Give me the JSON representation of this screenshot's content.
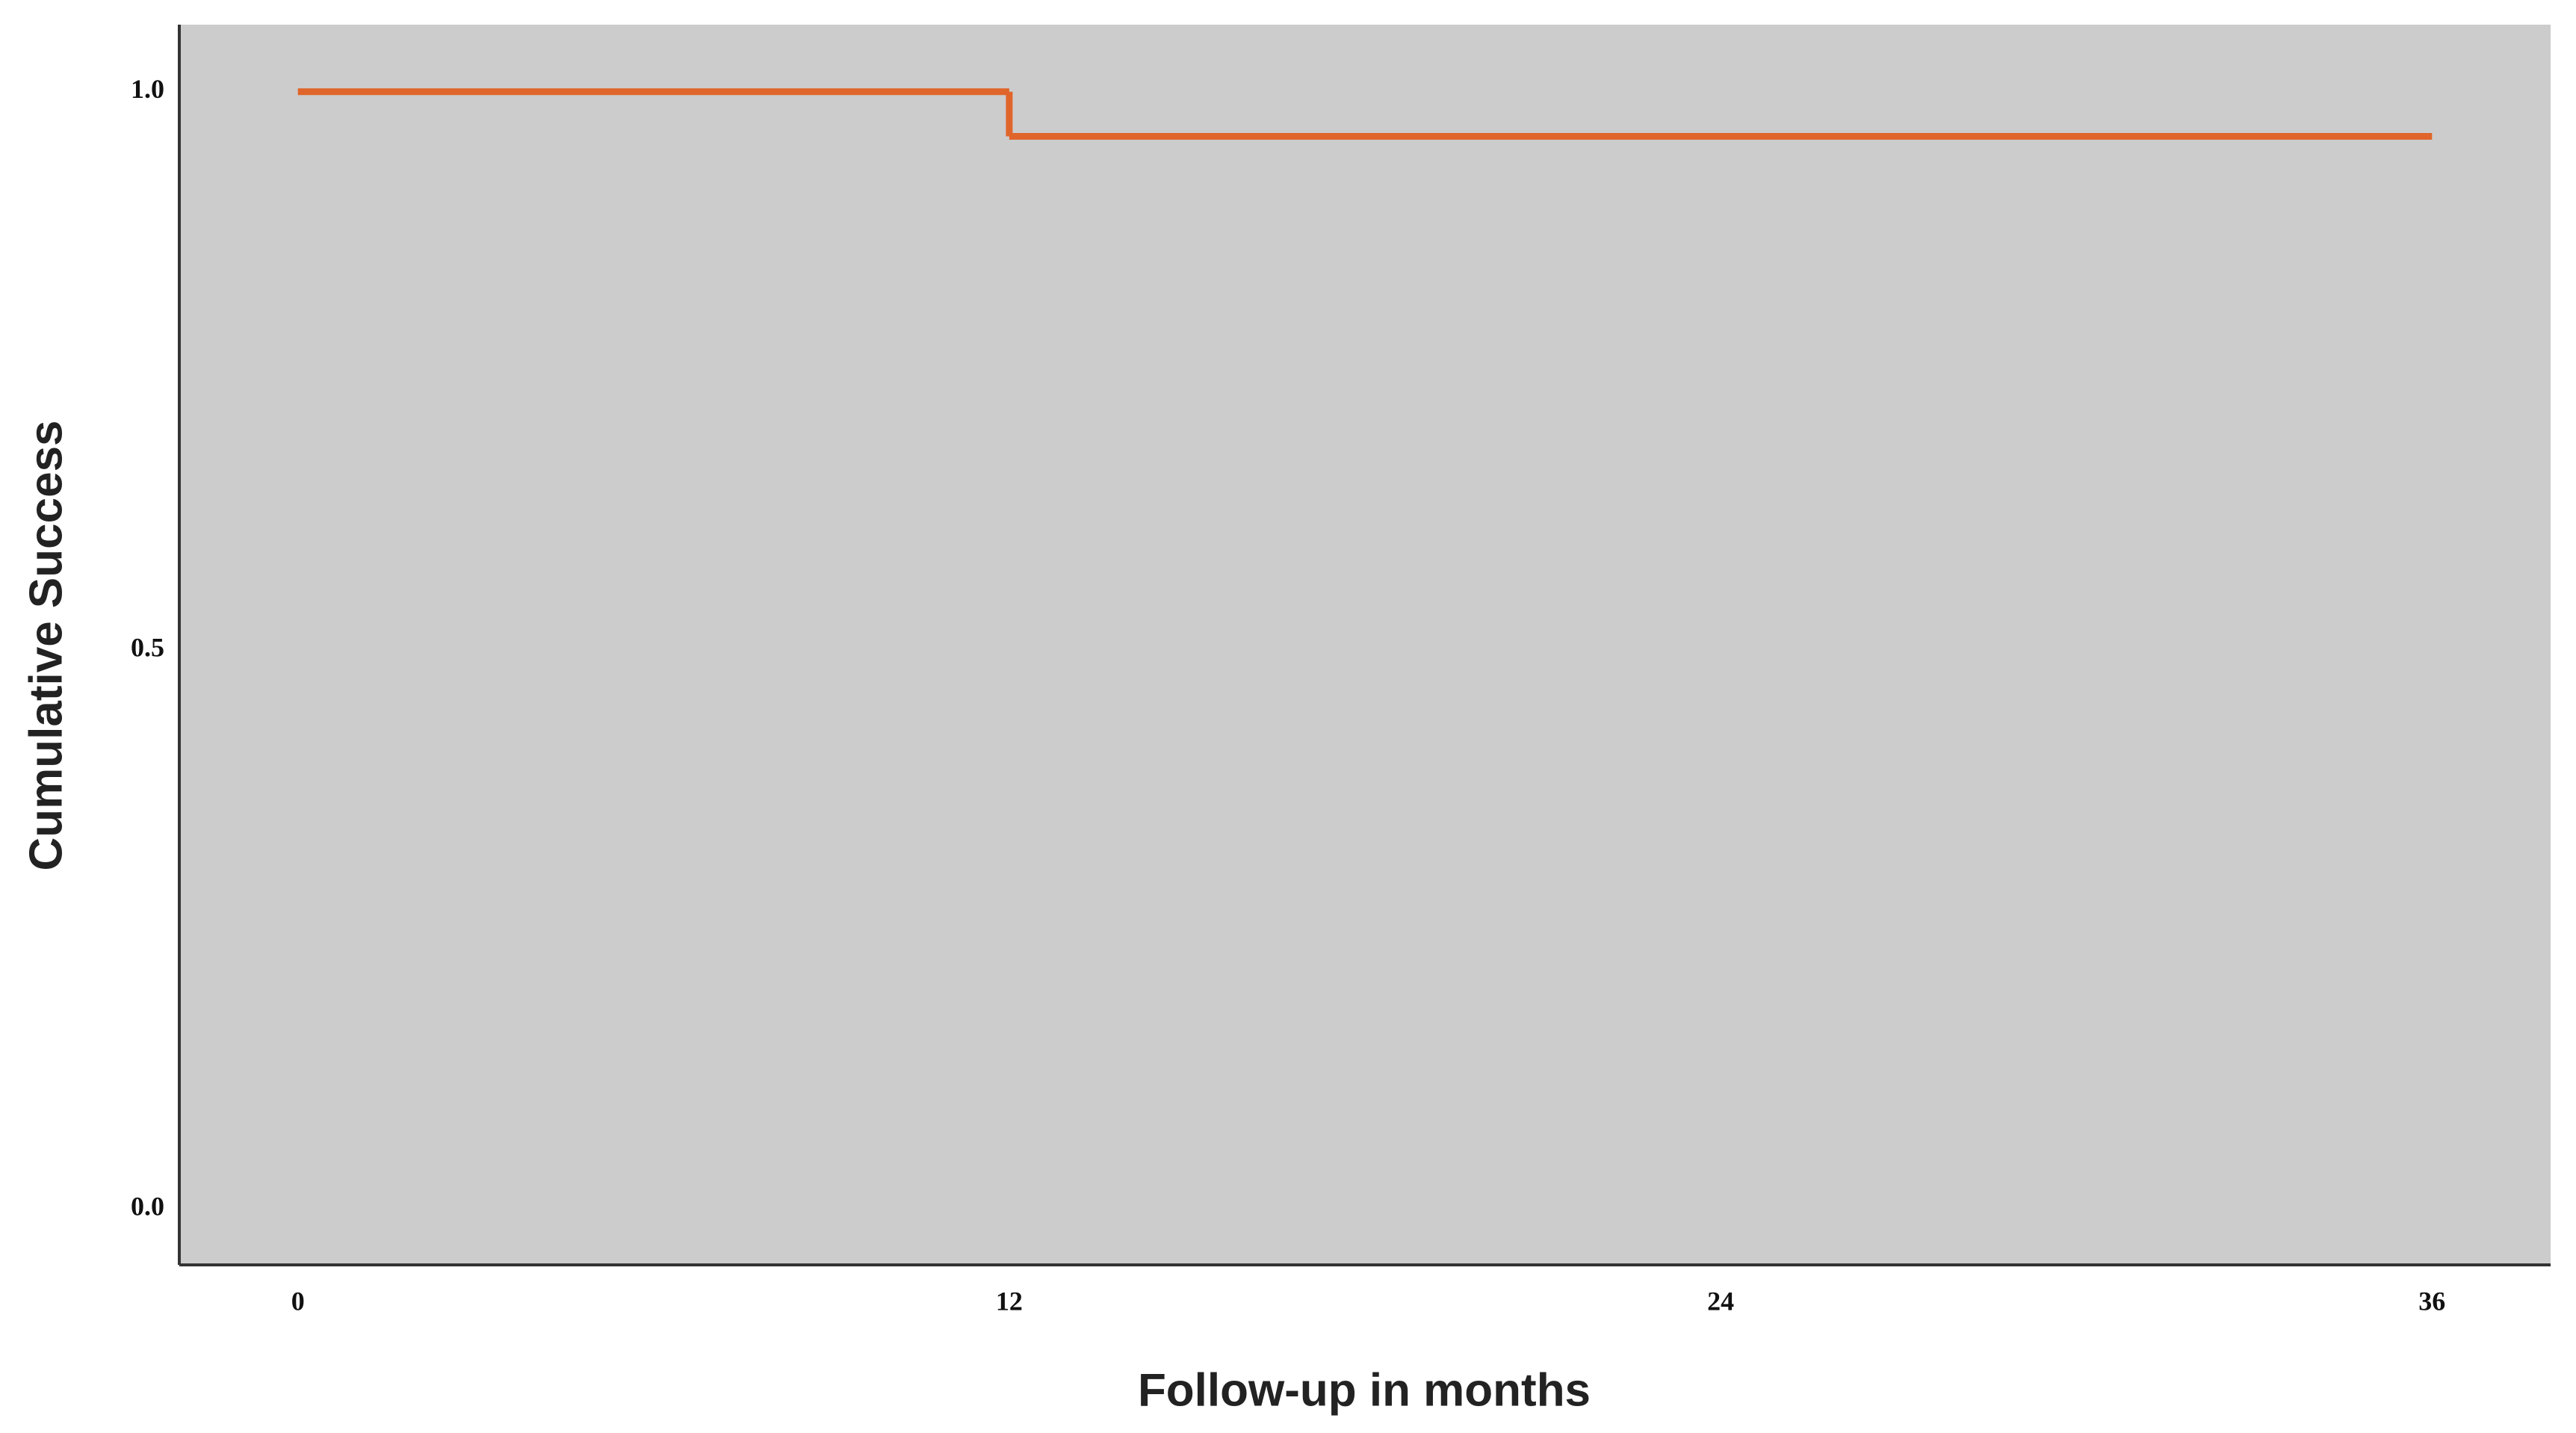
{
  "chart_data": {
    "type": "step",
    "x_label": "Follow-up in months",
    "y_label": "Cumulative Success",
    "x": [
      0,
      12,
      36
    ],
    "series": [
      {
        "color": "#e0652a",
        "values": [
          1.0,
          0.96,
          0.96
        ]
      }
    ],
    "xlim": [
      -2,
      38
    ],
    "ylim": [
      -0.05,
      1.06
    ],
    "xticks": [
      0,
      12,
      24,
      36
    ],
    "yticks": [
      {
        "value": 0,
        "label": "0.0"
      },
      {
        "value": 0.5,
        "label": "0.5"
      },
      {
        "value": 1,
        "label": "1.0"
      }
    ],
    "background": "#cccccc",
    "grid": false
  }
}
